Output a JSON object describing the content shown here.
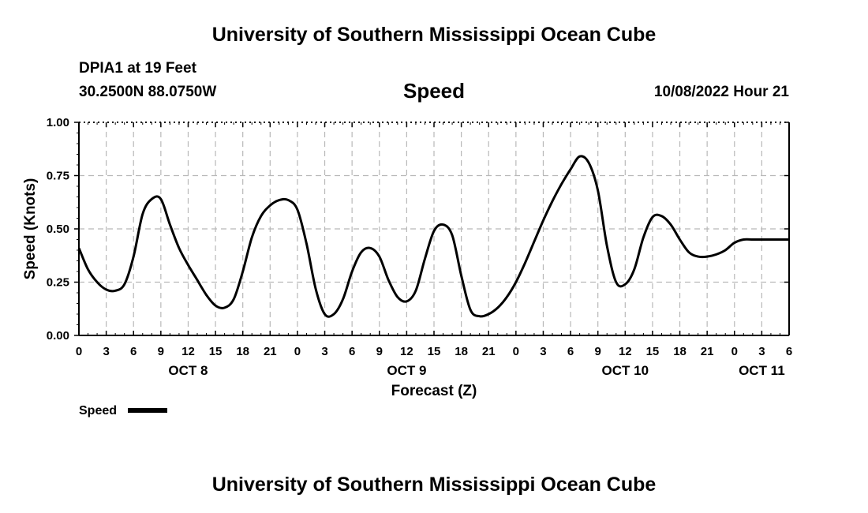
{
  "header": {
    "title": "University of Southern Mississippi Ocean Cube",
    "station": "DPIA1 at 19 Feet",
    "coords": "30.2500N  88.0750W",
    "timestamp": "10/08/2022 Hour 21"
  },
  "footer": {
    "title": "University of Southern Mississippi Ocean Cube"
  },
  "chart_data": {
    "type": "line",
    "title": "Speed",
    "xlabel": "Forecast (Z)",
    "ylabel": "Speed (Knots)",
    "ylim": [
      0,
      1
    ],
    "y_ticks": [
      "0.00",
      "0.25",
      "0.50",
      "0.75",
      "1.00"
    ],
    "x_ticks": [
      "0",
      "3",
      "6",
      "9",
      "12",
      "15",
      "18",
      "21",
      "0",
      "3",
      "6",
      "9",
      "12",
      "15",
      "18",
      "21",
      "0",
      "3",
      "6",
      "9",
      "12",
      "15",
      "18",
      "21",
      "0",
      "3",
      "6"
    ],
    "day_labels": [
      {
        "label": "OCT 8",
        "hour": 12
      },
      {
        "label": "OCT 9",
        "hour": 36
      },
      {
        "label": "OCT 10",
        "hour": 60
      },
      {
        "label": "OCT 11",
        "hour": 75
      }
    ],
    "grid": true,
    "legend": {
      "label": "Speed",
      "placement": "bottom-left"
    },
    "color": "#000000",
    "series": [
      {
        "name": "Speed",
        "x": [
          0,
          1,
          2,
          3,
          4,
          5,
          6,
          7,
          8,
          9,
          10,
          11,
          12,
          13,
          14,
          15,
          16,
          17,
          18,
          19,
          20,
          21,
          22,
          23,
          24,
          25,
          26,
          27,
          28,
          29,
          30,
          31,
          32,
          33,
          34,
          35,
          36,
          37,
          38,
          39,
          40,
          41,
          42,
          43,
          44,
          45,
          46,
          47,
          48,
          49,
          50,
          51,
          52,
          53,
          54,
          55,
          56,
          57,
          58,
          59,
          60,
          61,
          62,
          63,
          64,
          65,
          66,
          67,
          68,
          69,
          70,
          71,
          72,
          73,
          74,
          75,
          76,
          77,
          78
        ],
        "y": [
          0.41,
          0.31,
          0.25,
          0.215,
          0.21,
          0.24,
          0.37,
          0.57,
          0.64,
          0.64,
          0.52,
          0.41,
          0.33,
          0.26,
          0.19,
          0.14,
          0.13,
          0.17,
          0.3,
          0.46,
          0.56,
          0.61,
          0.635,
          0.635,
          0.59,
          0.43,
          0.22,
          0.1,
          0.1,
          0.17,
          0.3,
          0.39,
          0.41,
          0.37,
          0.26,
          0.18,
          0.16,
          0.21,
          0.36,
          0.49,
          0.52,
          0.47,
          0.28,
          0.12,
          0.09,
          0.1,
          0.13,
          0.18,
          0.25,
          0.34,
          0.44,
          0.54,
          0.63,
          0.71,
          0.78,
          0.84,
          0.81,
          0.68,
          0.42,
          0.25,
          0.24,
          0.31,
          0.46,
          0.555,
          0.56,
          0.52,
          0.45,
          0.39,
          0.37,
          0.37,
          0.38,
          0.4,
          0.435,
          0.45,
          0.45,
          0.45,
          0.45,
          0.45,
          0.45
        ]
      }
    ]
  }
}
